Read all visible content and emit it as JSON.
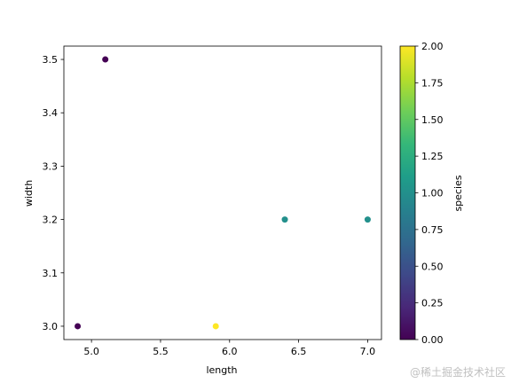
{
  "chart_data": {
    "type": "scatter",
    "xlabel": "length",
    "ylabel": "width",
    "xlim": [
      4.8,
      7.1
    ],
    "ylim": [
      2.975,
      3.525
    ],
    "x_ticks": [
      "5.0",
      "5.5",
      "6.0",
      "6.5",
      "7.0"
    ],
    "y_ticks": [
      "3.0",
      "3.1",
      "3.2",
      "3.3",
      "3.4",
      "3.5"
    ],
    "points": [
      {
        "x": 5.1,
        "y": 3.5,
        "species": 0
      },
      {
        "x": 4.9,
        "y": 3.0,
        "species": 0
      },
      {
        "x": 6.4,
        "y": 3.2,
        "species": 1
      },
      {
        "x": 7.0,
        "y": 3.2,
        "species": 1
      },
      {
        "x": 5.9,
        "y": 3.0,
        "species": 2
      }
    ],
    "colorbar": {
      "label": "species",
      "colormap": "viridis",
      "range": [
        0.0,
        2.0
      ],
      "ticks": [
        "0.00",
        "0.25",
        "0.50",
        "0.75",
        "1.00",
        "1.25",
        "1.50",
        "1.75",
        "2.00"
      ]
    },
    "grid": false,
    "legend": false
  },
  "colors": {
    "viridis": [
      "#440154",
      "#482878",
      "#3e4989",
      "#31688e",
      "#26828e",
      "#1f9e89",
      "#35b779",
      "#6ece58",
      "#b5de2b",
      "#fde725"
    ]
  },
  "watermark": "@稀土掘金技术社区"
}
